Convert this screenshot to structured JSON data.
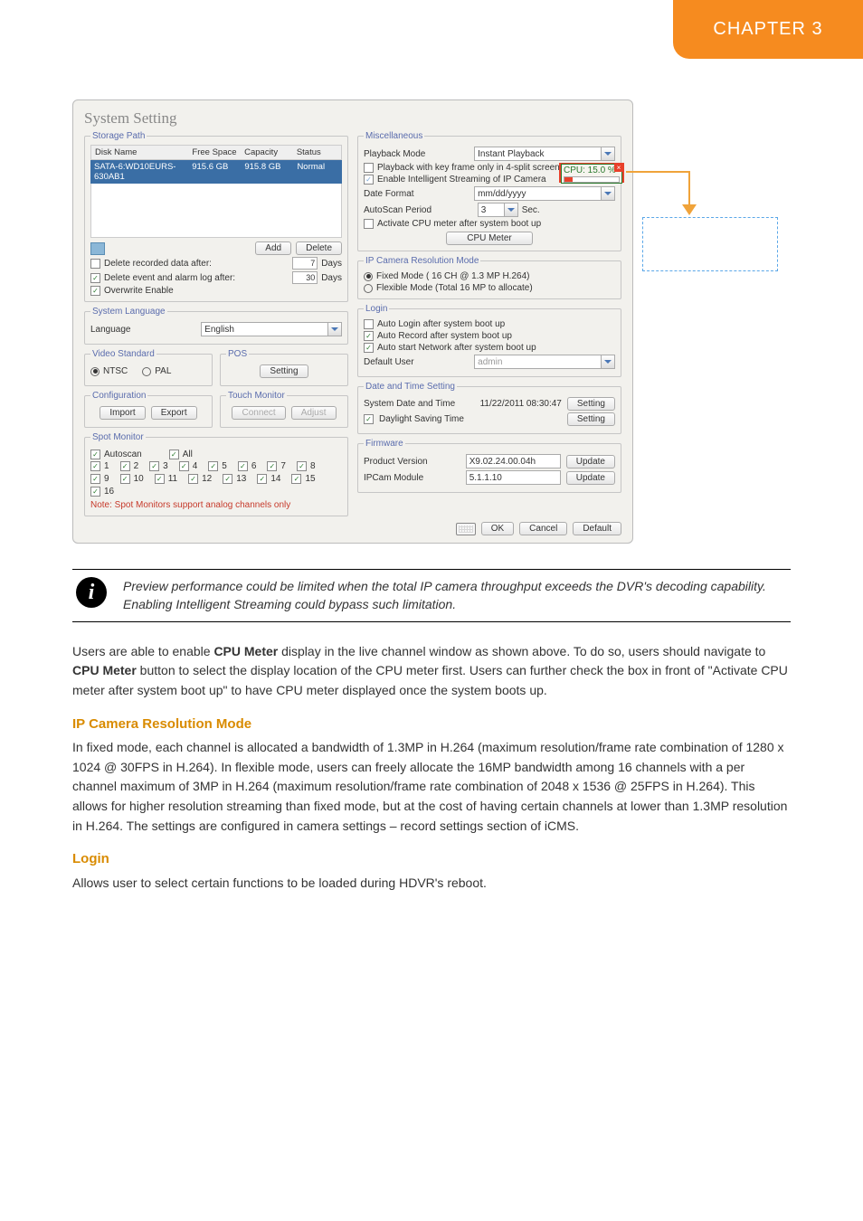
{
  "chapter_tab": "CHAPTER 3",
  "screenshot": {
    "title": "System Setting",
    "storage": {
      "legend": "Storage Path",
      "cols": [
        "Disk Name",
        "Free Space",
        "Capacity",
        "Status"
      ],
      "row": [
        "SATA-6:WD10EURS-630AB1",
        "915.6 GB",
        "915.8 GB",
        "Normal"
      ],
      "add": "Add",
      "delete": "Delete",
      "del_rec_label": "Delete recorded data after:",
      "del_rec_val": "7",
      "days1": "Days",
      "del_evt_label": "Delete event and alarm log after:",
      "del_evt_val": "30",
      "days2": "Days",
      "overwrite": "Overwrite Enable"
    },
    "language": {
      "legend": "System Language",
      "label": "Language",
      "value": "English"
    },
    "video_std": {
      "legend": "Video Standard",
      "ntsc": "NTSC",
      "pal": "PAL"
    },
    "pos": {
      "legend": "POS",
      "btn": "Setting"
    },
    "config": {
      "legend": "Configuration",
      "import": "Import",
      "export": "Export"
    },
    "touch": {
      "legend": "Touch Monitor",
      "connect": "Connect",
      "adjust": "Adjust"
    },
    "spot": {
      "legend": "Spot Monitor",
      "autoscan": "Autoscan",
      "all": "All",
      "channels": [
        "1",
        "2",
        "3",
        "4",
        "5",
        "6",
        "7",
        "8",
        "9",
        "10",
        "11",
        "12",
        "13",
        "14",
        "15",
        "16"
      ],
      "note": "Note: Spot Monitors support analog channels only"
    },
    "misc": {
      "legend": "Miscellaneous",
      "pb_mode_label": "Playback Mode",
      "pb_mode_value": "Instant Playback",
      "pb_keyframe": "Playback with key frame only in 4-split screen",
      "enable_stream": "Enable Intelligent Streaming of IP Camera",
      "date_fmt_label": "Date Format",
      "date_fmt_value": "mm/dd/yyyy",
      "autoscan_label": "AutoScan Period",
      "autoscan_value": "3",
      "autoscan_sec": "Sec.",
      "cpu_chk": "Activate CPU meter after system boot up",
      "cpu_btn": "CPU Meter",
      "cpu_meter_label": "CPU: 15.0 %",
      "cpu_bar_pct": 15
    },
    "ipcam_res": {
      "legend": "IP Camera Resolution Mode",
      "fixed": "Fixed Mode ( 16 CH @ 1.3 MP H.264)",
      "flexible": "Flexible Mode (Total 16 MP to allocate)"
    },
    "login": {
      "legend": "Login",
      "auto_login": "Auto Login after system boot up",
      "auto_record": "Auto Record after system boot up",
      "auto_net": "Auto start Network after system boot up",
      "default_user_label": "Default User",
      "default_user_value": "admin"
    },
    "datetime": {
      "legend": "Date and Time Setting",
      "sys_label": "System Date and Time",
      "sys_value": "11/22/2011  08:30:47",
      "setting1": "Setting",
      "daylight": "Daylight Saving Time",
      "setting2": "Setting"
    },
    "firmware": {
      "legend": "Firmware",
      "prod_label": "Product Version",
      "prod_value": "X9.02.24.00.04h",
      "update1": "Update",
      "ipcam_label": "IPCam Module",
      "ipcam_value": "5.1.1.10",
      "update2": "Update"
    },
    "footer": {
      "ok": "OK",
      "cancel": "Cancel",
      "default": "Default"
    }
  },
  "info_note": "Preview performance could be limited when the total IP camera throughput exceeds the DVR's decoding capability. Enabling Intelligent Streaming could bypass such limitation.",
  "body": {
    "p1_a": "Users are able to enable ",
    "p1_b": "CPU Meter",
    "p1_c": " display in the live channel window as shown above. To do so, users should navigate to ",
    "p1_d": "CPU Meter",
    "p1_e": " button to select the display location of the CPU meter first. Users can further check the box in front of \"Activate CPU meter after system boot up\" to have CPU meter displayed once the system boots up.",
    "sub1": "IP Camera Resolution Mode",
    "p2": "In fixed mode, each channel is allocated a bandwidth of 1.3MP in H.264 (maximum resolution/frame rate combination of 1280 x 1024 @ 30FPS in H.264). In flexible mode, users can freely allocate the 16MP bandwidth among 16 channels with a per channel maximum of 3MP in H.264 (maximum resolution/frame rate combination of 2048 x 1536 @ 25FPS in H.264). This allows for higher resolution streaming than fixed mode, but at the cost of having certain channels at lower than 1.3MP resolution in H.264. The settings are configured in camera settings – record settings section of iCMS.",
    "sub2": "Login",
    "p3": "Allows user to select certain functions to be loaded during HDVR's reboot."
  },
  "highlight": {
    "color": "#e8402a",
    "dash_color": "#5aa7e8",
    "arrow_color": "#f0a33a"
  }
}
